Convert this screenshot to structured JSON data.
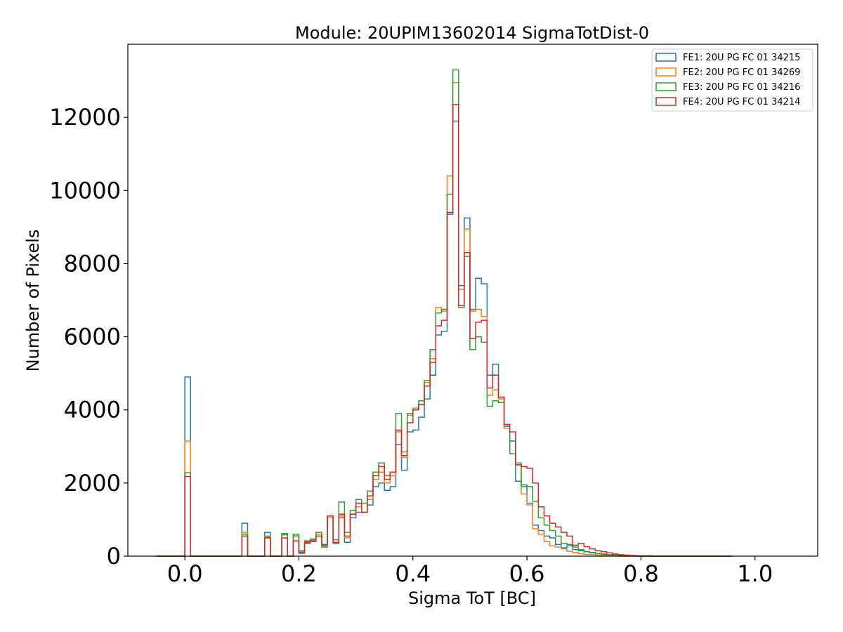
{
  "chart_data": {
    "type": "histogram",
    "title": "Module: 20UPIM13602014 SigmaTotDist-0",
    "xlabel": "Sigma ToT [BC]",
    "ylabel": "Number of Pixels",
    "xlim": [
      -0.1,
      1.11
    ],
    "ylim": [
      0,
      14000
    ],
    "xticks": [
      0.0,
      0.2,
      0.4,
      0.6,
      0.8,
      1.0
    ],
    "xtick_labels": [
      "0.0",
      "0.2",
      "0.4",
      "0.6",
      "0.8",
      "1.0"
    ],
    "yticks": [
      0,
      2000,
      4000,
      6000,
      8000,
      10000,
      12000
    ],
    "ytick_labels": [
      "0",
      "2000",
      "4000",
      "6000",
      "8000",
      "10000",
      "12000"
    ],
    "grid": false,
    "legend_position": "top-right",
    "bin_start": -0.05,
    "bin_width": 0.01,
    "series": [
      {
        "name": "FE1: 20U PG FC 01 34215",
        "color": "#1f77b4",
        "values": [
          0,
          0,
          0,
          0,
          0,
          4900,
          0,
          0,
          0,
          0,
          0,
          0,
          0,
          0,
          0,
          900,
          0,
          0,
          0,
          650,
          0,
          0,
          600,
          0,
          550,
          100,
          350,
          420,
          600,
          250,
          1100,
          350,
          1050,
          380,
          1050,
          1200,
          1200,
          1400,
          1900,
          2000,
          1800,
          1900,
          3050,
          2350,
          3400,
          3450,
          3800,
          4300,
          4950,
          6050,
          6150,
          9350,
          11900,
          7400,
          9250,
          6750,
          7600,
          7450,
          4950,
          5250,
          4350,
          3550,
          3150,
          2050,
          1950,
          1450,
          850,
          700,
          550,
          500,
          320,
          230,
          280,
          180,
          150,
          120,
          100,
          70,
          50,
          40,
          30,
          20,
          10,
          10,
          0,
          0,
          0,
          0,
          0,
          0,
          0,
          0,
          0,
          0,
          0,
          0,
          0,
          0,
          0,
          0,
          0
        ]
      },
      {
        "name": "FE2: 20U PG FC 01 34269",
        "color": "#ff7f0e",
        "values": [
          0,
          0,
          0,
          0,
          0,
          3150,
          0,
          0,
          0,
          0,
          0,
          0,
          0,
          0,
          0,
          650,
          0,
          0,
          0,
          550,
          0,
          0,
          580,
          0,
          560,
          130,
          400,
          450,
          600,
          280,
          1050,
          380,
          1100,
          500,
          1150,
          1350,
          1200,
          1550,
          2100,
          2300,
          2000,
          2200,
          3400,
          2700,
          3850,
          4050,
          4150,
          4750,
          5400,
          6800,
          6700,
          10400,
          12950,
          7300,
          8950,
          6700,
          6750,
          6550,
          4400,
          4550,
          4300,
          3500,
          2800,
          2500,
          1700,
          1400,
          750,
          600,
          400,
          280,
          250,
          200,
          130,
          100,
          70,
          50,
          40,
          30,
          20,
          10,
          10,
          0,
          0,
          0,
          0,
          0,
          0,
          0,
          0,
          0,
          0,
          0,
          0,
          0,
          0,
          0,
          0,
          0,
          0
        ]
      },
      {
        "name": "FE3: 20U PG FC 01 34216",
        "color": "#2ca02c",
        "values": [
          0,
          0,
          0,
          0,
          0,
          2280,
          0,
          0,
          0,
          0,
          0,
          0,
          0,
          0,
          0,
          600,
          0,
          0,
          0,
          520,
          0,
          0,
          620,
          0,
          600,
          150,
          420,
          470,
          650,
          300,
          1100,
          450,
          1480,
          650,
          1250,
          1550,
          1450,
          1780,
          2300,
          2550,
          2200,
          2300,
          3900,
          2850,
          3900,
          4000,
          4250,
          4800,
          5650,
          6650,
          6750,
          9900,
          13300,
          6800,
          8200,
          5650,
          6000,
          5850,
          4100,
          4250,
          4200,
          3600,
          2800,
          2550,
          1900,
          1900,
          1500,
          1050,
          850,
          700,
          550,
          350,
          320,
          250,
          180,
          130,
          90,
          70,
          60,
          40,
          30,
          20,
          10,
          10,
          0,
          0,
          0,
          0,
          0,
          0,
          0,
          0,
          0,
          0,
          0,
          0,
          0,
          0,
          0,
          0,
          0
        ]
      },
      {
        "name": "FE4: 20U PG FC 01 34214",
        "color": "#d62728",
        "values": [
          0,
          0,
          0,
          0,
          0,
          2180,
          0,
          0,
          0,
          0,
          0,
          0,
          0,
          0,
          0,
          550,
          0,
          0,
          0,
          500,
          0,
          0,
          500,
          0,
          420,
          80,
          380,
          400,
          550,
          320,
          1100,
          380,
          1150,
          550,
          1150,
          1450,
          1200,
          1650,
          2200,
          2450,
          2100,
          2300,
          3450,
          2750,
          3650,
          4000,
          4150,
          4650,
          5300,
          6300,
          6450,
          9400,
          12350,
          6850,
          8300,
          5950,
          6400,
          6450,
          4600,
          4950,
          4350,
          3600,
          3400,
          2500,
          2450,
          2400,
          2000,
          1350,
          1100,
          900,
          800,
          650,
          550,
          300,
          350,
          260,
          200,
          150,
          120,
          90,
          60,
          40,
          30,
          20,
          10,
          10,
          10,
          0,
          0,
          0,
          0,
          0,
          0,
          0,
          0,
          0,
          0,
          0,
          0,
          0,
          0
        ]
      }
    ]
  }
}
